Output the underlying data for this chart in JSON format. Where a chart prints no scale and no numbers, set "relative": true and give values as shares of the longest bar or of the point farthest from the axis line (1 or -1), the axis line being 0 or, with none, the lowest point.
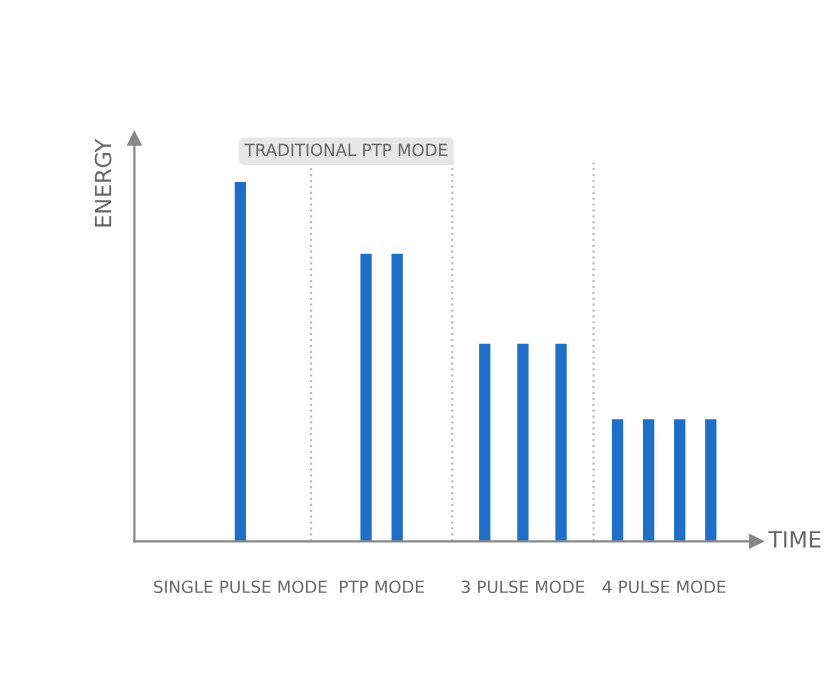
{
  "chart_data": {
    "type": "bar",
    "relative": true,
    "xlabel": "TIME",
    "ylabel": "ENERGY",
    "categories": [
      "SINGLE PULSE MODE",
      "PTP MODE",
      "3 PULSE MODE",
      "4 PULSE MODE"
    ],
    "series": [
      {
        "color": "#1f6fc8",
        "values": [
          1,
          0.8,
          0.55,
          0.34
        ]
      },
      {
        "color": "#1f6fc8",
        "values": [
          null,
          0.8,
          0.55,
          0.34
        ]
      },
      {
        "color": "#1f6fc8",
        "values": [
          null,
          null,
          0.55,
          0.34
        ]
      },
      {
        "color": "#1f6fc8",
        "values": [
          null,
          null,
          null,
          0.34
        ]
      }
    ],
    "annotations": [
      "TRADITIONAL PTP MODE"
    ],
    "grid": false,
    "legend": false
  }
}
